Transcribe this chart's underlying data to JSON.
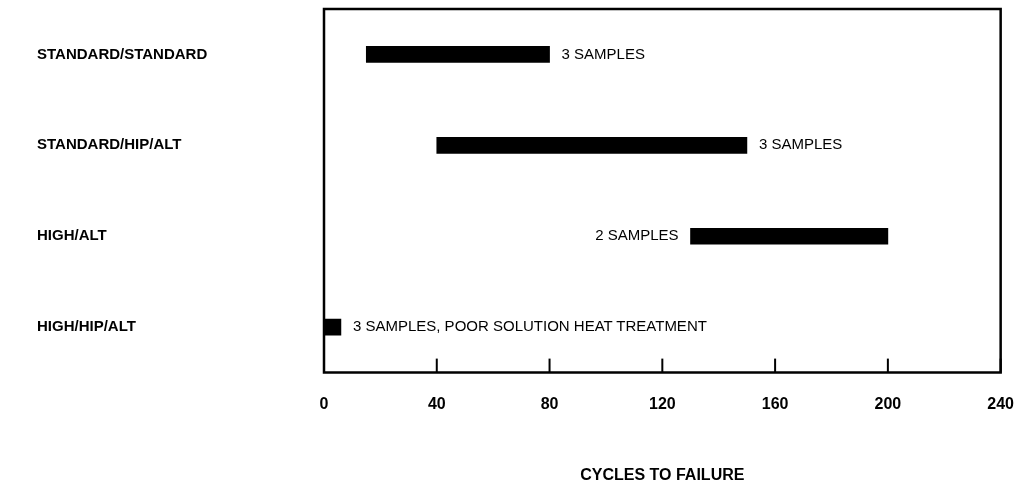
{
  "chart_data": {
    "type": "bar",
    "orientation": "horizontal",
    "xlabel": "CYCLES TO FAILURE",
    "categories": [
      "STANDARD/STANDARD",
      "STANDARD/HIP/ALT",
      "HIGH/ALT",
      "HIGH/HIP/ALT"
    ],
    "base": [
      15,
      40,
      130,
      0
    ],
    "values": [
      65,
      110,
      70,
      6
    ],
    "color": "#000000",
    "xlim": [
      0,
      240
    ],
    "xticks": [
      0,
      40,
      80,
      120,
      160,
      200,
      240
    ],
    "grid": false,
    "legend": false,
    "annotations": [
      {
        "text": "3 SAMPLES",
        "x": 80,
        "y": "STANDARD/STANDARD"
      },
      {
        "text": "3 SAMPLES",
        "x": 150,
        "y": "STANDARD/HIP/ALT"
      },
      {
        "text": "2 SAMPLES",
        "x": 130,
        "y": "HIGH/ALT"
      },
      {
        "text": "3 SAMPLES, POOR SOLUTION HEAT TREATMENT",
        "x": 6,
        "y": "HIGH/HIP/ALT"
      }
    ]
  }
}
